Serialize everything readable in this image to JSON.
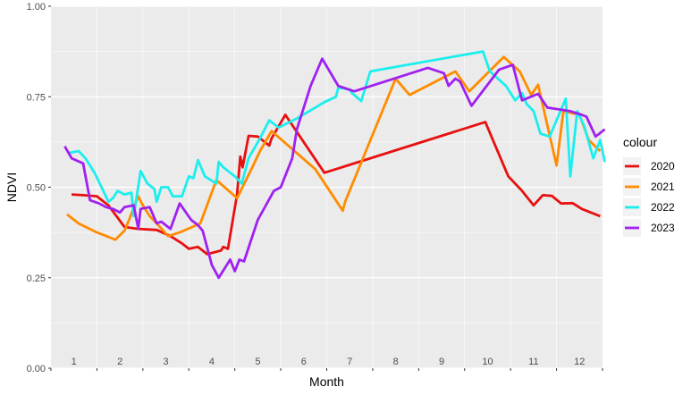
{
  "chart_data": {
    "type": "line",
    "xlabel": "Month",
    "ylabel": "NDVI",
    "ylim": [
      0,
      1
    ],
    "xlim": [
      0.5,
      12.5
    ],
    "grid": true,
    "legend_position": "right",
    "legend_title": "colour",
    "x_ticks": [
      {
        "v": 1,
        "label": "1"
      },
      {
        "v": 2,
        "label": "2"
      },
      {
        "v": 3,
        "label": "3"
      },
      {
        "v": 4,
        "label": "4"
      },
      {
        "v": 5,
        "label": "5"
      },
      {
        "v": 6,
        "label": "6"
      },
      {
        "v": 7,
        "label": "7"
      },
      {
        "v": 8,
        "label": "8"
      },
      {
        "v": 9,
        "label": "9"
      },
      {
        "v": 10,
        "label": "10"
      },
      {
        "v": 11,
        "label": "11"
      },
      {
        "v": 12,
        "label": "12"
      }
    ],
    "y_ticks": [
      {
        "v": 0,
        "label": "0.00"
      },
      {
        "v": 0.25,
        "label": "0.25"
      },
      {
        "v": 0.5,
        "label": "0.50"
      },
      {
        "v": 0.75,
        "label": "0.75"
      },
      {
        "v": 1,
        "label": "1.00"
      }
    ],
    "series": [
      {
        "name": "2020",
        "color": "#e8100f",
        "points": [
          [
            0.95,
            0.48
          ],
          [
            1.2,
            0.478
          ],
          [
            1.5,
            0.475
          ],
          [
            1.75,
            0.45
          ],
          [
            2.1,
            0.39
          ],
          [
            2.4,
            0.385
          ],
          [
            2.8,
            0.382
          ],
          [
            3.1,
            0.365
          ],
          [
            3.35,
            0.345
          ],
          [
            3.5,
            0.33
          ],
          [
            3.7,
            0.335
          ],
          [
            3.9,
            0.315
          ],
          [
            4.2,
            0.325
          ],
          [
            4.25,
            0.335
          ],
          [
            4.35,
            0.33
          ],
          [
            4.55,
            0.48
          ],
          [
            4.62,
            0.585
          ],
          [
            4.67,
            0.555
          ],
          [
            4.8,
            0.642
          ],
          [
            5.0,
            0.64
          ],
          [
            5.1,
            0.63
          ],
          [
            5.25,
            0.615
          ],
          [
            5.3,
            0.635
          ],
          [
            5.6,
            0.7
          ],
          [
            6.45,
            0.54
          ],
          [
            9.95,
            0.68
          ],
          [
            10.45,
            0.53
          ],
          [
            10.75,
            0.49
          ],
          [
            11.0,
            0.45
          ],
          [
            11.2,
            0.478
          ],
          [
            11.4,
            0.476
          ],
          [
            11.6,
            0.455
          ],
          [
            11.85,
            0.456
          ],
          [
            12.05,
            0.44
          ],
          [
            12.45,
            0.42
          ]
        ]
      },
      {
        "name": "2021",
        "color": "#ff8c00",
        "points": [
          [
            0.85,
            0.425
          ],
          [
            1.1,
            0.4
          ],
          [
            1.5,
            0.375
          ],
          [
            1.6,
            0.37
          ],
          [
            1.9,
            0.355
          ],
          [
            2.1,
            0.38
          ],
          [
            2.2,
            0.41
          ],
          [
            2.35,
            0.46
          ],
          [
            2.4,
            0.475
          ],
          [
            2.5,
            0.45
          ],
          [
            2.65,
            0.42
          ],
          [
            2.8,
            0.4
          ],
          [
            3.05,
            0.365
          ],
          [
            3.3,
            0.375
          ],
          [
            3.75,
            0.4
          ],
          [
            4.1,
            0.52
          ],
          [
            4.55,
            0.47
          ],
          [
            4.9,
            0.56
          ],
          [
            5.05,
            0.6
          ],
          [
            5.3,
            0.655
          ],
          [
            6.25,
            0.55
          ],
          [
            6.85,
            0.435
          ],
          [
            6.9,
            0.46
          ],
          [
            8.0,
            0.8
          ],
          [
            8.3,
            0.755
          ],
          [
            9.3,
            0.82
          ],
          [
            9.6,
            0.765
          ],
          [
            10.35,
            0.86
          ],
          [
            10.7,
            0.82
          ],
          [
            10.95,
            0.755
          ],
          [
            11.1,
            0.783
          ],
          [
            11.5,
            0.56
          ],
          [
            11.65,
            0.71
          ],
          [
            12.0,
            0.7
          ],
          [
            12.2,
            0.63
          ],
          [
            12.45,
            0.6
          ]
        ]
      },
      {
        "name": "2022",
        "color": "#1ceeee",
        "points": [
          [
            0.9,
            0.595
          ],
          [
            1.1,
            0.6
          ],
          [
            1.25,
            0.58
          ],
          [
            1.45,
            0.54
          ],
          [
            1.6,
            0.5
          ],
          [
            1.75,
            0.46
          ],
          [
            1.85,
            0.47
          ],
          [
            1.95,
            0.49
          ],
          [
            2.1,
            0.48
          ],
          [
            2.25,
            0.485
          ],
          [
            2.3,
            0.42
          ],
          [
            2.45,
            0.545
          ],
          [
            2.6,
            0.51
          ],
          [
            2.75,
            0.495
          ],
          [
            2.8,
            0.46
          ],
          [
            2.9,
            0.5
          ],
          [
            3.05,
            0.5
          ],
          [
            3.15,
            0.475
          ],
          [
            3.35,
            0.475
          ],
          [
            3.5,
            0.53
          ],
          [
            3.6,
            0.525
          ],
          [
            3.7,
            0.575
          ],
          [
            3.85,
            0.53
          ],
          [
            4.1,
            0.51
          ],
          [
            4.15,
            0.57
          ],
          [
            4.25,
            0.555
          ],
          [
            4.5,
            0.53
          ],
          [
            4.65,
            0.51
          ],
          [
            4.8,
            0.58
          ],
          [
            5.05,
            0.635
          ],
          [
            5.25,
            0.685
          ],
          [
            5.45,
            0.665
          ],
          [
            5.85,
            0.69
          ],
          [
            6.45,
            0.735
          ],
          [
            6.7,
            0.75
          ],
          [
            6.75,
            0.775
          ],
          [
            7.0,
            0.77
          ],
          [
            7.05,
            0.76
          ],
          [
            7.25,
            0.738
          ],
          [
            7.45,
            0.82
          ],
          [
            9.9,
            0.875
          ],
          [
            10.05,
            0.82
          ],
          [
            10.4,
            0.78
          ],
          [
            10.6,
            0.74
          ],
          [
            10.75,
            0.76
          ],
          [
            10.85,
            0.73
          ],
          [
            11.0,
            0.71
          ],
          [
            11.15,
            0.648
          ],
          [
            11.35,
            0.64
          ],
          [
            11.7,
            0.745
          ],
          [
            11.8,
            0.53
          ],
          [
            11.95,
            0.71
          ],
          [
            12.1,
            0.67
          ],
          [
            12.3,
            0.58
          ],
          [
            12.45,
            0.63
          ],
          [
            12.55,
            0.57
          ]
        ]
      },
      {
        "name": "2023",
        "color": "#a020f0",
        "points": [
          [
            0.8,
            0.613
          ],
          [
            0.95,
            0.58
          ],
          [
            1.2,
            0.566
          ],
          [
            1.35,
            0.464
          ],
          [
            1.55,
            0.455
          ],
          [
            1.7,
            0.445
          ],
          [
            1.85,
            0.44
          ],
          [
            2.0,
            0.43
          ],
          [
            2.1,
            0.445
          ],
          [
            2.3,
            0.45
          ],
          [
            2.4,
            0.385
          ],
          [
            2.45,
            0.44
          ],
          [
            2.65,
            0.445
          ],
          [
            2.8,
            0.4
          ],
          [
            2.9,
            0.405
          ],
          [
            3.1,
            0.385
          ],
          [
            3.3,
            0.455
          ],
          [
            3.55,
            0.41
          ],
          [
            3.7,
            0.395
          ],
          [
            3.8,
            0.38
          ],
          [
            4.0,
            0.285
          ],
          [
            4.15,
            0.25
          ],
          [
            4.4,
            0.3
          ],
          [
            4.5,
            0.268
          ],
          [
            4.6,
            0.3
          ],
          [
            4.7,
            0.295
          ],
          [
            5.0,
            0.41
          ],
          [
            5.35,
            0.49
          ],
          [
            5.5,
            0.5
          ],
          [
            5.75,
            0.58
          ],
          [
            5.85,
            0.66
          ],
          [
            6.15,
            0.78
          ],
          [
            6.4,
            0.855
          ],
          [
            6.75,
            0.78
          ],
          [
            7.1,
            0.765
          ],
          [
            8.7,
            0.83
          ],
          [
            9.05,
            0.815
          ],
          [
            9.15,
            0.78
          ],
          [
            9.3,
            0.8
          ],
          [
            9.4,
            0.792
          ],
          [
            9.65,
            0.725
          ],
          [
            10.25,
            0.825
          ],
          [
            10.55,
            0.838
          ],
          [
            10.75,
            0.74
          ],
          [
            11.1,
            0.758
          ],
          [
            11.3,
            0.72
          ],
          [
            11.55,
            0.715
          ],
          [
            11.8,
            0.71
          ],
          [
            12.05,
            0.7
          ],
          [
            12.15,
            0.695
          ],
          [
            12.35,
            0.64
          ],
          [
            12.55,
            0.66
          ]
        ]
      }
    ]
  }
}
